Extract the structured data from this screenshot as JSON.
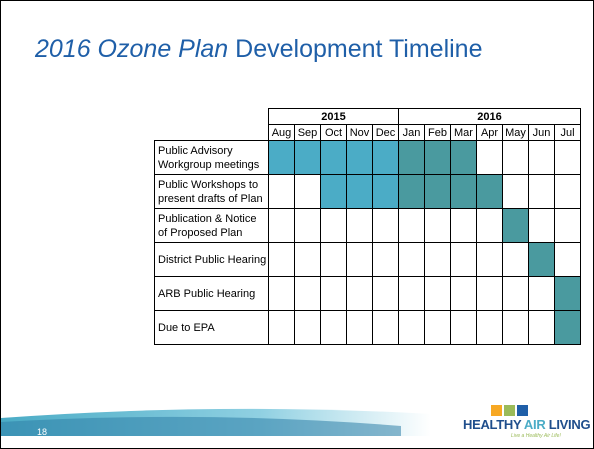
{
  "header": {
    "title_emphasis": "2016 Ozone Plan",
    "title_rest": " Development Timeline"
  },
  "table": {
    "years": [
      {
        "label": "2015",
        "span": 5,
        "color": "#4bacc6"
      },
      {
        "label": "2016",
        "span": 7,
        "color": "#4a9a9f"
      }
    ],
    "months": [
      "Aug",
      "Sep",
      "Oct",
      "Nov",
      "Dec",
      "Jan",
      "Feb",
      "Mar",
      "Apr",
      "May",
      "Jun",
      "Jul"
    ],
    "rows": [
      {
        "label": "Public Advisory Workgroup meetings",
        "filled": [
          true,
          true,
          true,
          true,
          true,
          true,
          true,
          true,
          false,
          false,
          false,
          false
        ]
      },
      {
        "label": "Public Workshops to present drafts of Plan",
        "filled": [
          false,
          false,
          true,
          true,
          true,
          true,
          true,
          true,
          true,
          false,
          false,
          false
        ]
      },
      {
        "label": "Publication & Notice of Proposed Plan",
        "filled": [
          false,
          false,
          false,
          false,
          false,
          false,
          false,
          false,
          false,
          true,
          false,
          false
        ]
      },
      {
        "label": "District Public Hearing",
        "filled": [
          false,
          false,
          false,
          false,
          false,
          false,
          false,
          false,
          false,
          false,
          true,
          false
        ]
      },
      {
        "label": "ARB Public Hearing",
        "filled": [
          false,
          false,
          false,
          false,
          false,
          false,
          false,
          false,
          false,
          false,
          false,
          true
        ]
      },
      {
        "label": "Due to EPA",
        "filled": [
          false,
          false,
          false,
          false,
          false,
          false,
          false,
          false,
          false,
          false,
          false,
          true
        ]
      }
    ]
  },
  "footer": {
    "page_number": "18",
    "logo_text_a": "HEALTHY ",
    "logo_text_b": "AIR",
    "logo_text_c": " LIVING",
    "logo_tagline": "Live a Healthy Air Life!"
  }
}
